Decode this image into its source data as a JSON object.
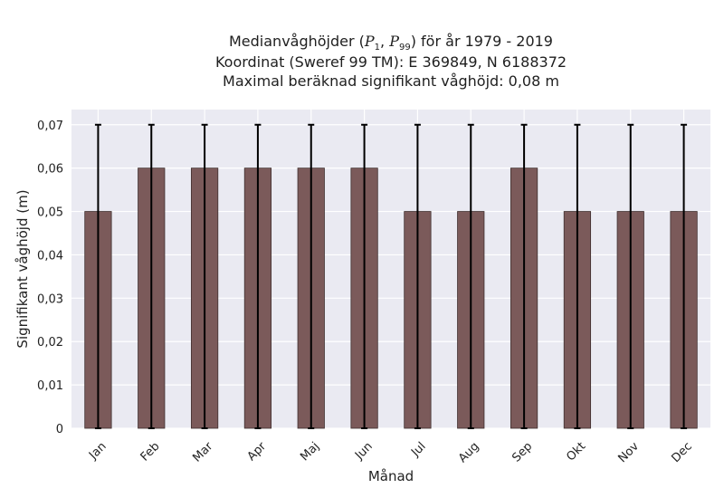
{
  "titles": {
    "line1_pre": "Medianvåghöjder (",
    "p_symbol": "P",
    "p1_sub": "1",
    "p99_sub": "99",
    "line1_post": ") för år 1979 - 2019",
    "line2": "Koordinat (Sweref 99 TM): E 369849, N 6188372",
    "line3": "Maximal beräknad signifikant våghöjd: 0,08 m"
  },
  "chart_data": {
    "type": "bar",
    "xlabel": "Månad",
    "ylabel": "Signifikant våghöjd (m)",
    "ylim": [
      0,
      0.07
    ],
    "yticks": [
      0,
      0.01,
      0.02,
      0.03,
      0.04,
      0.05,
      0.06,
      0.07
    ],
    "ytick_labels": [
      "0",
      "0,01",
      "0,02",
      "0,03",
      "0,04",
      "0,05",
      "0,06",
      "0,07"
    ],
    "categories": [
      "Jan",
      "Feb",
      "Mar",
      "Apr",
      "Maj",
      "Jun",
      "Jul",
      "Aug",
      "Sep",
      "Okt",
      "Nov",
      "Dec"
    ],
    "values": [
      0.05,
      0.06,
      0.06,
      0.06,
      0.06,
      0.06,
      0.05,
      0.05,
      0.06,
      0.05,
      0.05,
      0.05
    ],
    "error_low": [
      0,
      0,
      0,
      0,
      0,
      0,
      0,
      0,
      0,
      0,
      0,
      0
    ],
    "error_high": [
      0.07,
      0.07,
      0.07,
      0.07,
      0.07,
      0.07,
      0.07,
      0.07,
      0.07,
      0.07,
      0.07,
      0.07
    ],
    "grid": true,
    "colors": {
      "bar": "#7b5a5a",
      "bar_edge": "#3f2f2f",
      "errorbar": "#000000",
      "plot_background": "#eaeaf2",
      "grid": "#ffffff"
    }
  }
}
